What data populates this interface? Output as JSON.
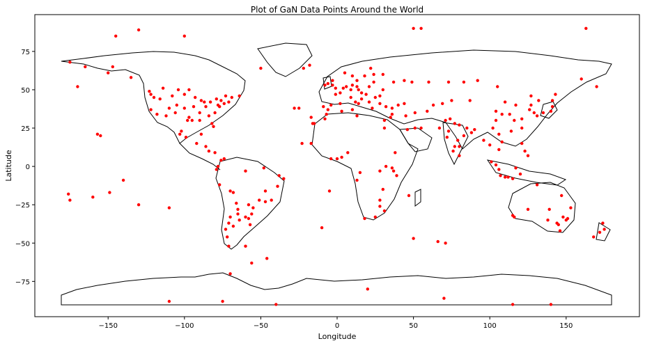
{
  "chart_data": {
    "type": "scatter",
    "title": "Plot of GaN Data Points Around the World",
    "xlabel": "Longitude",
    "ylabel": "Latitude",
    "xlim": [
      -198,
      198
    ],
    "ylim": [
      -98,
      99
    ],
    "xticks": [
      -150,
      -100,
      -50,
      0,
      50,
      100,
      150
    ],
    "xtick_labels": [
      "−150",
      "−100",
      "−50",
      "0",
      "50",
      "100",
      "150"
    ],
    "yticks": [
      75,
      50,
      25,
      0,
      -25,
      -50,
      -75
    ],
    "ytick_labels": [
      "75",
      "50",
      "25",
      "0",
      "−25",
      "−50",
      "−75"
    ],
    "grid": false,
    "legend": "none",
    "marker_color": "#ff0000",
    "basemap_color": "#000000",
    "series": [
      {
        "points": [
          [
            -120,
            45
          ],
          [
            -118,
            34
          ],
          [
            -112,
            33
          ],
          [
            -105,
            40
          ],
          [
            -100,
            38
          ],
          [
            -97,
            32
          ],
          [
            -95,
            30
          ],
          [
            -90,
            35
          ],
          [
            -87,
            42
          ],
          [
            -84,
            33
          ],
          [
            -80,
            35
          ],
          [
            -78,
            40
          ],
          [
            -74,
            41
          ],
          [
            -71,
            42
          ],
          [
            -82,
            28
          ],
          [
            -81,
            26
          ],
          [
            -122,
            47
          ],
          [
            -122,
            37
          ],
          [
            -116,
            44
          ],
          [
            -108,
            46
          ],
          [
            -100,
            47
          ],
          [
            -93,
            45
          ],
          [
            -89,
            43
          ],
          [
            -86,
            39
          ],
          [
            -83,
            42
          ],
          [
            -77,
            39
          ],
          [
            -76,
            43
          ],
          [
            -69,
            45
          ],
          [
            -110,
            38
          ],
          [
            -106,
            35
          ],
          [
            -98,
            30
          ],
          [
            -94,
            39
          ],
          [
            -90,
            30
          ],
          [
            -123,
            49
          ],
          [
            -114,
            51
          ],
          [
            -104,
            50
          ],
          [
            -97,
            50
          ],
          [
            -79,
            44
          ],
          [
            -73,
            46
          ],
          [
            -64,
            46
          ],
          [
            -102,
            23
          ],
          [
            -99,
            19
          ],
          [
            -103,
            21
          ],
          [
            -89,
            21
          ],
          [
            -92,
            15
          ],
          [
            -86,
            13
          ],
          [
            -84,
            10
          ],
          [
            -80,
            9
          ],
          [
            -76,
            4
          ],
          [
            -74,
            5
          ],
          [
            -78,
            0
          ],
          [
            -79,
            -2
          ],
          [
            -77,
            -12
          ],
          [
            -70,
            -16
          ],
          [
            -68,
            -17
          ],
          [
            -66,
            -24
          ],
          [
            -65,
            -28
          ],
          [
            -58,
            -25
          ],
          [
            -55,
            -27
          ],
          [
            -51,
            -22
          ],
          [
            -47,
            -23
          ],
          [
            -43,
            -22
          ],
          [
            -47,
            -16
          ],
          [
            -39,
            -13
          ],
          [
            -38,
            -6
          ],
          [
            -35,
            -8
          ],
          [
            -48,
            -1
          ],
          [
            -60,
            -3
          ],
          [
            -70,
            -33
          ],
          [
            -71,
            -37
          ],
          [
            -73,
            -41
          ],
          [
            -72,
            -46
          ],
          [
            -71,
            -52
          ],
          [
            -65,
            -31
          ],
          [
            -64,
            -35
          ],
          [
            -60,
            -33
          ],
          [
            -58,
            -34
          ],
          [
            -57,
            -38
          ],
          [
            -68,
            -39
          ],
          [
            -56,
            -31
          ],
          [
            -9,
            39
          ],
          [
            -4,
            40
          ],
          [
            -6,
            37
          ],
          [
            2,
            41
          ],
          [
            2,
            48
          ],
          [
            -1,
            47
          ],
          [
            4,
            51
          ],
          [
            6,
            52
          ],
          [
            9,
            50
          ],
          [
            13,
            52
          ],
          [
            10,
            53
          ],
          [
            14,
            50
          ],
          [
            16,
            48
          ],
          [
            19,
            47
          ],
          [
            21,
            52
          ],
          [
            24,
            55
          ],
          [
            12,
            42
          ],
          [
            14,
            41
          ],
          [
            9,
            45
          ],
          [
            16,
            44
          ],
          [
            21,
            42
          ],
          [
            23,
            38
          ],
          [
            25,
            45
          ],
          [
            28,
            46
          ],
          [
            30,
            50
          ],
          [
            37,
            55
          ],
          [
            44,
            56
          ],
          [
            49,
            55
          ],
          [
            30,
            60
          ],
          [
            18,
            59
          ],
          [
            10,
            59
          ],
          [
            24,
            60
          ],
          [
            -3,
            53
          ],
          [
            -1,
            51
          ],
          [
            -6,
            54
          ],
          [
            -8,
            53
          ],
          [
            -3,
            56
          ],
          [
            5,
            61
          ],
          [
            13,
            56
          ],
          [
            22,
            64
          ],
          [
            28,
            41
          ],
          [
            32,
            39
          ],
          [
            36,
            38
          ],
          [
            40,
            40
          ],
          [
            44,
            41
          ],
          [
            35,
            32
          ],
          [
            36,
            34
          ],
          [
            31,
            30
          ],
          [
            31,
            25
          ],
          [
            46,
            24
          ],
          [
            51,
            25
          ],
          [
            55,
            25
          ],
          [
            51,
            35
          ],
          [
            59,
            36
          ],
          [
            45,
            33
          ],
          [
            67,
            25
          ],
          [
            71,
            30
          ],
          [
            74,
            31
          ],
          [
            77,
            28
          ],
          [
            80,
            27
          ],
          [
            72,
            19
          ],
          [
            73,
            23
          ],
          [
            77,
            13
          ],
          [
            80,
            13
          ],
          [
            88,
            22
          ],
          [
            85,
            25
          ],
          [
            79,
            17
          ],
          [
            76,
            10
          ],
          [
            80,
            7
          ],
          [
            83,
            20
          ],
          [
            90,
            24
          ],
          [
            96,
            17
          ],
          [
            100,
            14
          ],
          [
            101,
            3
          ],
          [
            104,
            1
          ],
          [
            106,
            11
          ],
          [
            106,
            21
          ],
          [
            108,
            16
          ],
          [
            114,
            23
          ],
          [
            116,
            30
          ],
          [
            117,
            40
          ],
          [
            121,
            31
          ],
          [
            113,
            34
          ],
          [
            104,
            30
          ],
          [
            108,
            34
          ],
          [
            102,
            25
          ],
          [
            126,
            37
          ],
          [
            129,
            35
          ],
          [
            127,
            40
          ],
          [
            140,
            36
          ],
          [
            135,
            35
          ],
          [
            131,
            33
          ],
          [
            141,
            39
          ],
          [
            141,
            43
          ],
          [
            121,
            25
          ],
          [
            121,
            15
          ],
          [
            123,
            10
          ],
          [
            125,
            7
          ],
          [
            107,
            -6
          ],
          [
            112,
            -7
          ],
          [
            110,
            -7
          ],
          [
            115,
            -8
          ],
          [
            117,
            -1
          ],
          [
            106,
            -2
          ],
          [
            120,
            -5
          ],
          [
            115,
            -32
          ],
          [
            116,
            -33
          ],
          [
            138,
            -35
          ],
          [
            145,
            -38
          ],
          [
            151,
            -34
          ],
          [
            153,
            -27
          ],
          [
            147,
            -19
          ],
          [
            146,
            -42
          ],
          [
            131,
            -12
          ],
          [
            144,
            -37
          ],
          [
            150,
            -35
          ],
          [
            148,
            -33
          ],
          [
            139,
            -28
          ],
          [
            125,
            -28
          ],
          [
            174,
            -37
          ],
          [
            175,
            -41
          ],
          [
            172,
            -43
          ],
          [
            168,
            -46
          ],
          [
            18,
            -34
          ],
          [
            25,
            -33
          ],
          [
            28,
            -26
          ],
          [
            31,
            -29
          ],
          [
            28,
            -22
          ],
          [
            -17,
            15
          ],
          [
            -4,
            5
          ],
          [
            3,
            6
          ],
          [
            7,
            9
          ],
          [
            0,
            5
          ],
          [
            36,
            -1
          ],
          [
            37,
            -3
          ],
          [
            39,
            -6
          ],
          [
            32,
            0
          ],
          [
            38,
            9
          ],
          [
            30,
            -15
          ],
          [
            -8,
            31
          ],
          [
            -7,
            34
          ],
          [
            3,
            36
          ],
          [
            10,
            37
          ],
          [
            13,
            33
          ],
          [
            -15,
            28
          ],
          [
            -16,
            28
          ],
          [
            28,
            -3
          ],
          [
            15,
            -4
          ],
          [
            13,
            -9
          ],
          [
            47,
            -19
          ],
          [
            -155,
            20
          ],
          [
            -157,
            21
          ],
          [
            -150,
            61
          ],
          [
            -147,
            65
          ],
          [
            -135,
            58
          ],
          [
            -165,
            65
          ],
          [
            -50,
            64
          ],
          [
            -22,
            64
          ],
          [
            -18,
            66
          ],
          [
            -149,
            -17
          ],
          [
            -176,
            -18
          ],
          [
            -110,
            -27
          ],
          [
            -130,
            -25
          ],
          [
            -140,
            -9
          ],
          [
            -160,
            -20
          ],
          [
            -175,
            -22
          ],
          [
            -130,
            89
          ],
          [
            -145,
            85
          ],
          [
            -100,
            85
          ],
          [
            -40,
            -90
          ],
          [
            -110,
            -88
          ],
          [
            -75,
            -88
          ],
          [
            140,
            -90
          ],
          [
            115,
            -90
          ],
          [
            70,
            -86
          ],
          [
            20,
            -80
          ],
          [
            -70,
            -70
          ],
          [
            50,
            90
          ],
          [
            55,
            90
          ],
          [
            163,
            90
          ],
          [
            66,
            -49
          ],
          [
            71,
            -50
          ],
          [
            50,
            -47
          ],
          [
            -10,
            -40
          ],
          [
            -5,
            -16
          ],
          [
            -25,
            38
          ],
          [
            -28,
            38
          ],
          [
            -17,
            32
          ],
          [
            -23,
            15
          ],
          [
            -60,
            -52
          ],
          [
            -46,
            -60
          ],
          [
            -56,
            -63
          ],
          [
            170,
            52
          ],
          [
            -170,
            52
          ],
          [
            -175,
            68
          ],
          [
            160,
            57
          ],
          [
            132,
            43
          ],
          [
            143,
            47
          ],
          [
            60,
            55
          ],
          [
            73,
            55
          ],
          [
            83,
            55
          ],
          [
            92,
            56
          ],
          [
            105,
            52
          ],
          [
            87,
            43
          ],
          [
            75,
            43
          ],
          [
            69,
            41
          ],
          [
            63,
            40
          ],
          [
            104,
            36
          ],
          [
            110,
            42
          ],
          [
            127,
            46
          ]
        ]
      }
    ]
  }
}
